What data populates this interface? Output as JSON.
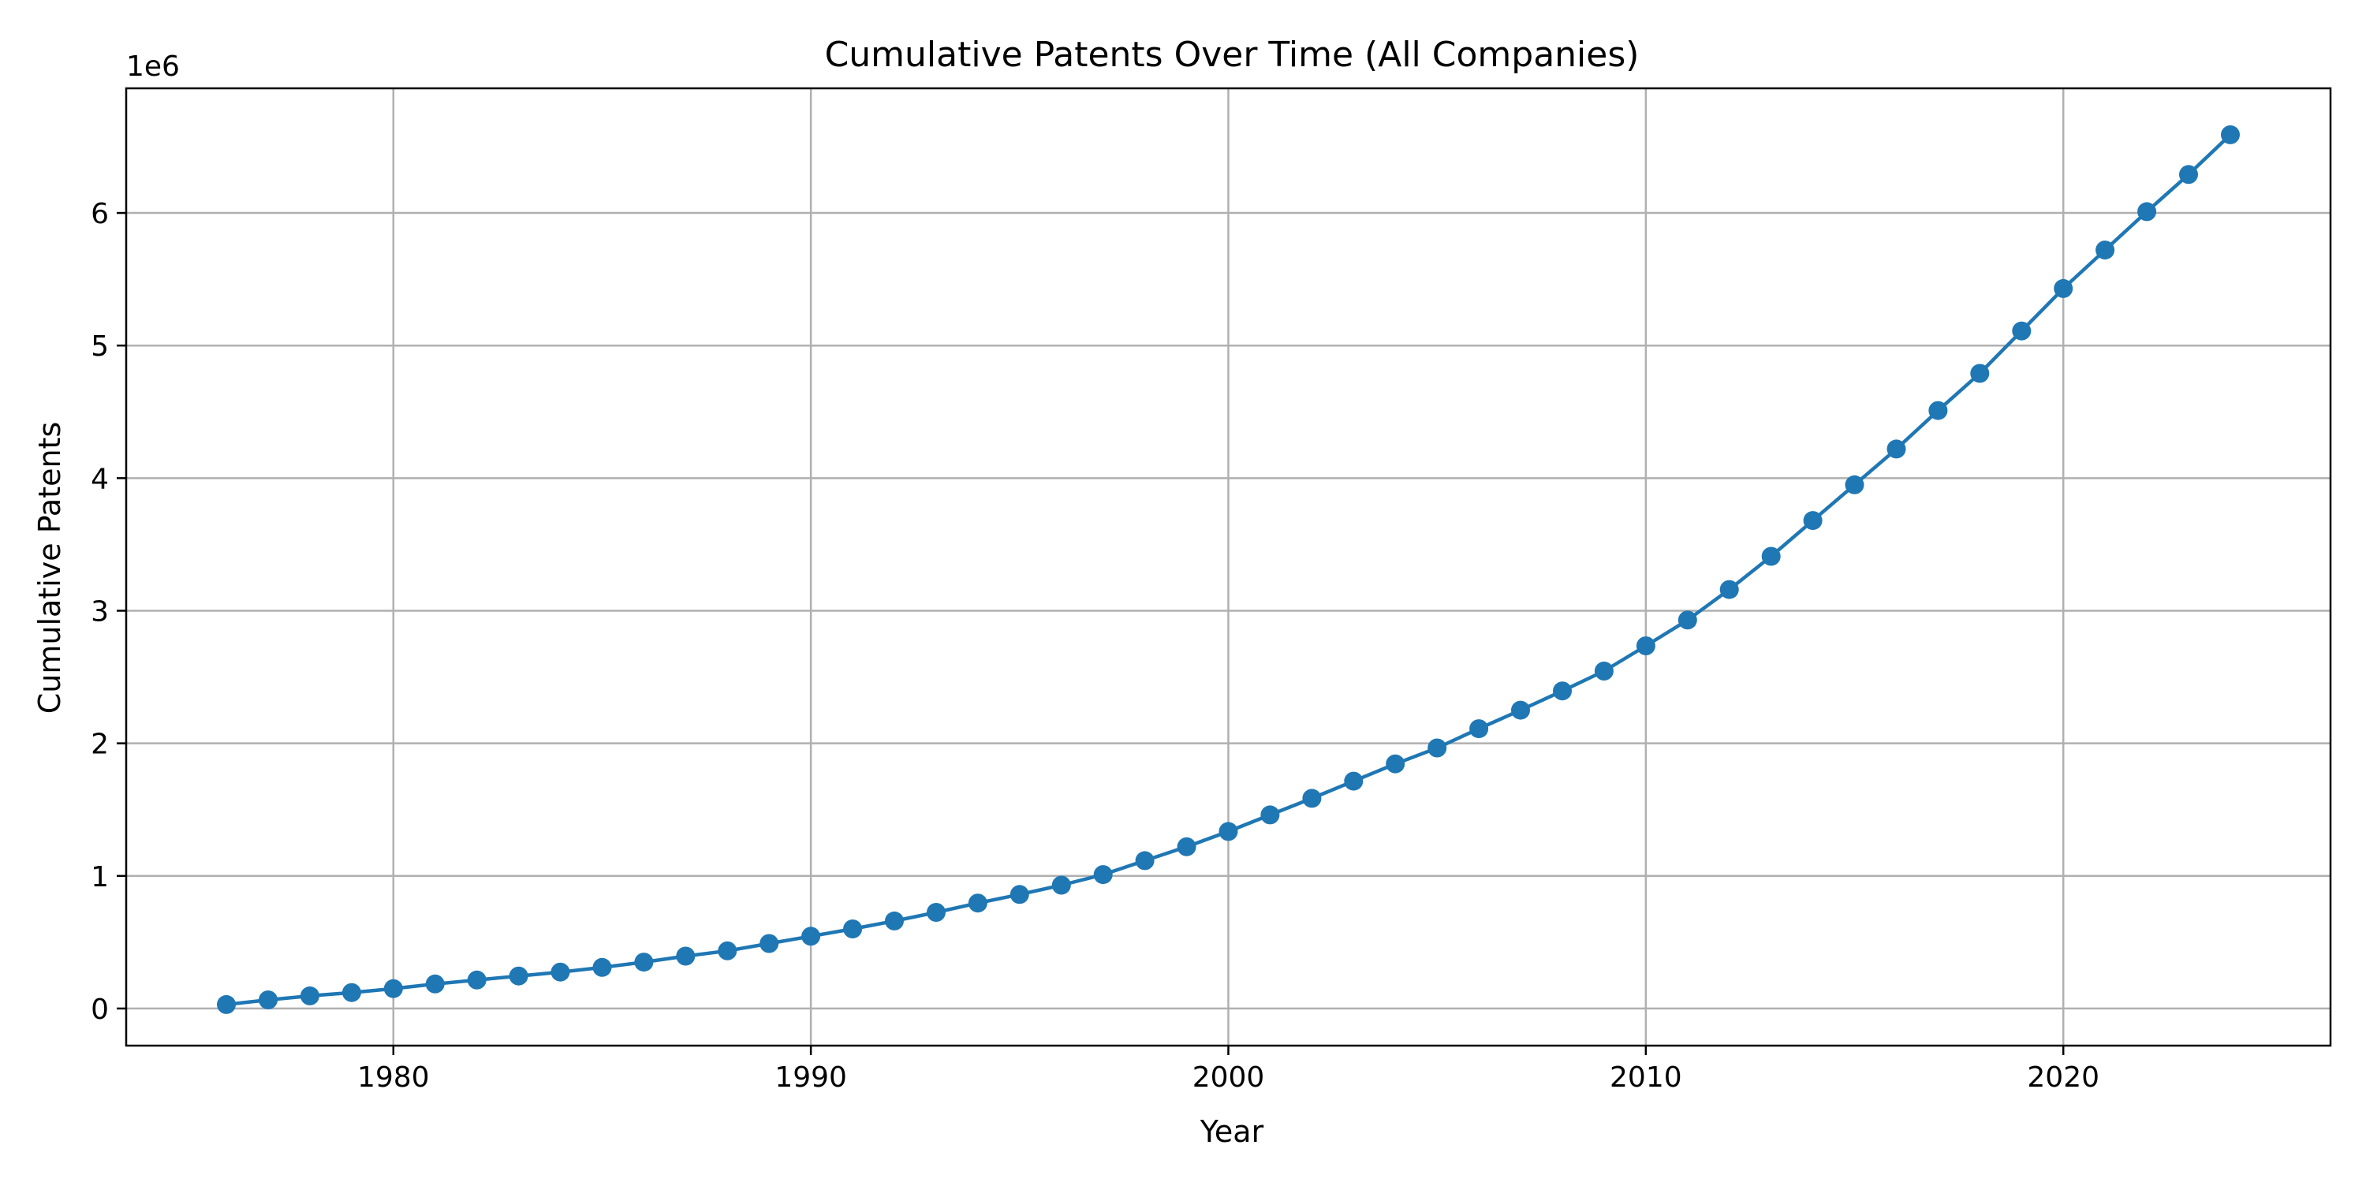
{
  "chart_data": {
    "type": "line",
    "title": "Cumulative Patents Over Time (All Companies)",
    "xlabel": "Year",
    "ylabel": "Cumulative Patents",
    "y_offset_label": "1e6",
    "y_multiplier": 1000000,
    "xlim": [
      1973.6,
      2026.4
    ],
    "ylim": [
      -280000,
      6940000
    ],
    "x_ticks": [
      1980,
      1990,
      2000,
      2010,
      2020
    ],
    "x_tick_labels": [
      "1980",
      "1990",
      "2000",
      "2010",
      "2020"
    ],
    "y_ticks": [
      0,
      1000000,
      2000000,
      3000000,
      4000000,
      5000000,
      6000000
    ],
    "y_tick_labels": [
      "0",
      "1",
      "2",
      "3",
      "4",
      "5",
      "6"
    ],
    "grid": true,
    "series": [
      {
        "color": "#1f77b4",
        "marker": "circle",
        "x": [
          1976,
          1977,
          1978,
          1979,
          1980,
          1981,
          1982,
          1983,
          1984,
          1985,
          1986,
          1987,
          1988,
          1989,
          1990,
          1991,
          1992,
          1993,
          1994,
          1995,
          1996,
          1997,
          1998,
          1999,
          2000,
          2001,
          2002,
          2003,
          2004,
          2005,
          2006,
          2007,
          2008,
          2009,
          2010,
          2011,
          2012,
          2013,
          2014,
          2015,
          2016,
          2017,
          2018,
          2019,
          2020,
          2021,
          2022,
          2023,
          2024
        ],
        "y": [
          30000,
          65000,
          95000,
          120000,
          150000,
          185000,
          215000,
          245000,
          275000,
          310000,
          350000,
          395000,
          435000,
          490000,
          545000,
          600000,
          660000,
          725000,
          795000,
          860000,
          930000,
          1010000,
          1115000,
          1220000,
          1335000,
          1460000,
          1585000,
          1715000,
          1845000,
          1965000,
          2110000,
          2250000,
          2395000,
          2545000,
          2735000,
          2930000,
          3160000,
          3410000,
          3680000,
          3950000,
          4220000,
          4510000,
          4790000,
          5110000,
          5430000,
          5720000,
          6010000,
          6290000,
          6590000
        ]
      }
    ]
  }
}
